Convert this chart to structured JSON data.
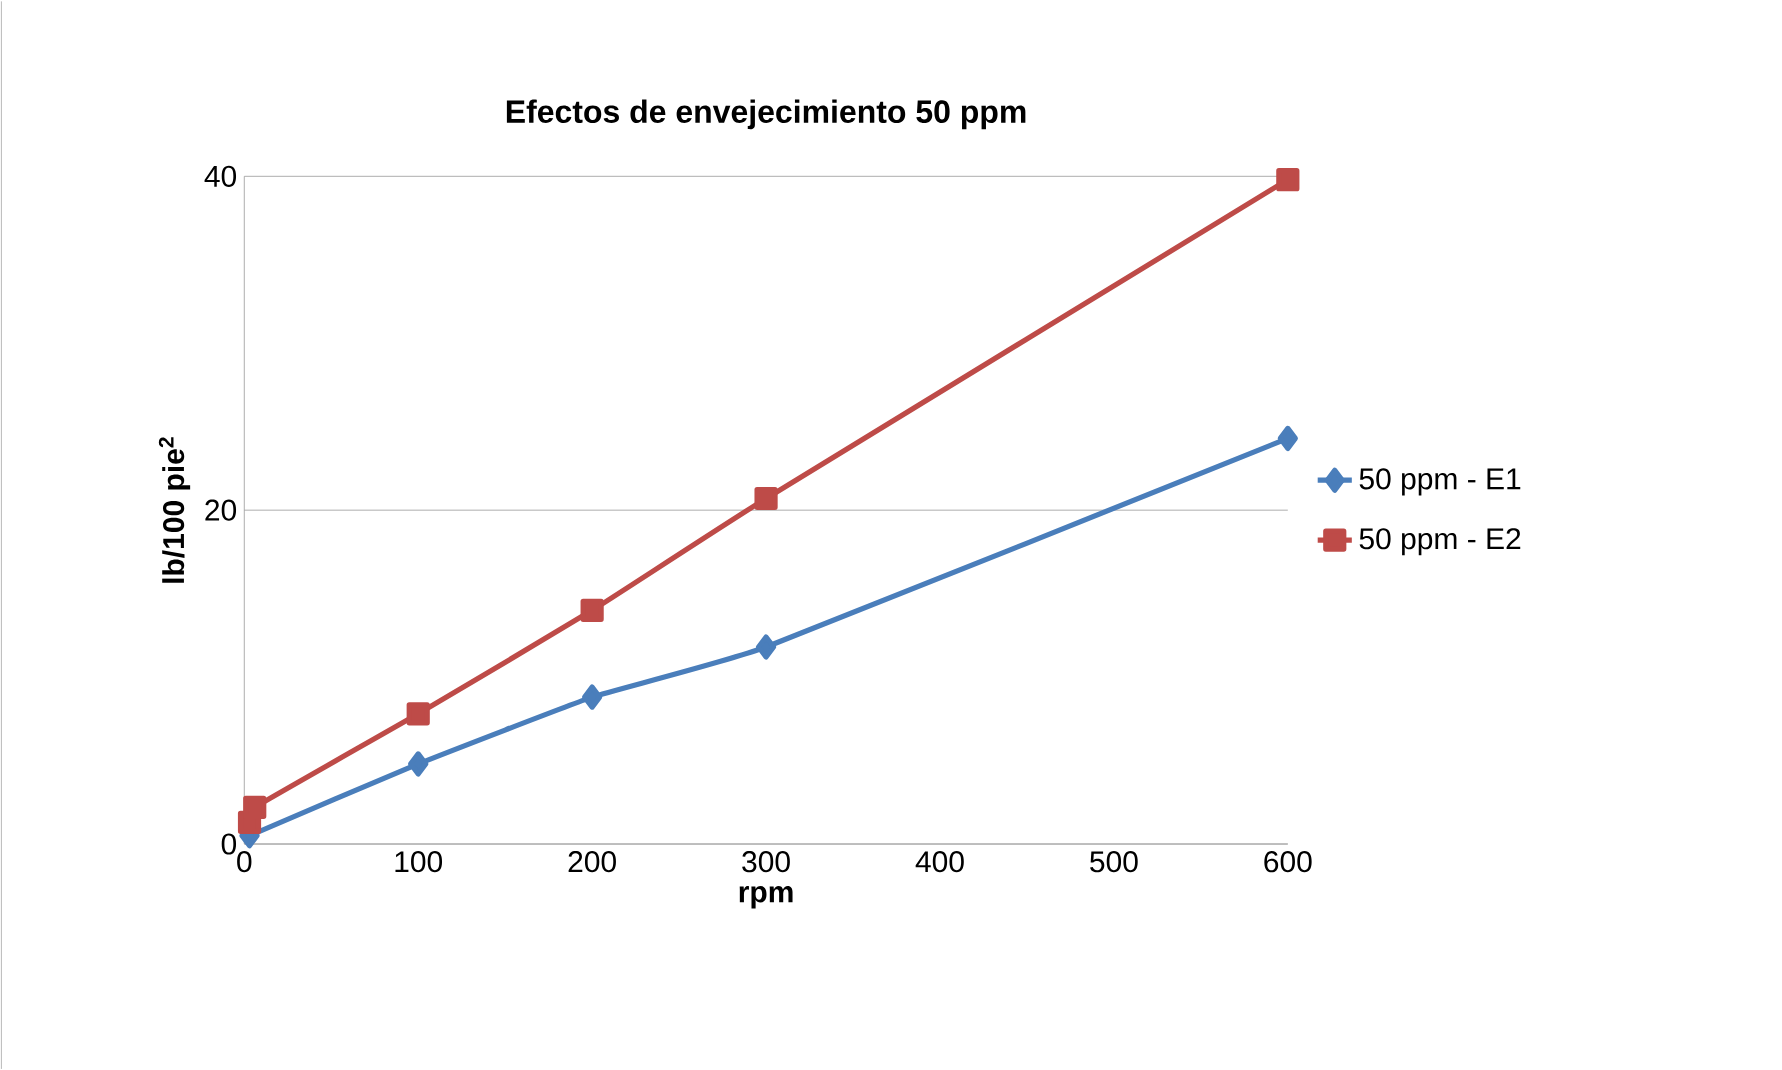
{
  "chart_data": {
    "type": "line",
    "title": "Efectos de envejecimiento 50 ppm",
    "xlabel": "rpm",
    "ylabel": "lb/100 pie$^{2}$",
    "xlim": [
      0,
      600
    ],
    "xticks": [
      0,
      100,
      200,
      300,
      400,
      500,
      600
    ],
    "ylim": [
      0,
      40
    ],
    "yticks": [
      0,
      20,
      40
    ],
    "grid": "y",
    "legend": "right",
    "series": [
      {
        "name": "50 ppm - E1",
        "color": "#4a7ebb",
        "marker": "diamond",
        "x": [
          3,
          6,
          100,
          200,
          300,
          600
        ],
        "values": [
          0.5,
          null,
          4.8,
          8.8,
          11.8,
          24.3
        ]
      },
      {
        "name": "50 ppm - E2",
        "color": "#be4b48",
        "marker": "square",
        "x": [
          3,
          6,
          100,
          200,
          300,
          600
        ],
        "values": [
          1.3,
          2.2,
          7.8,
          14,
          20.7,
          39.8
        ]
      }
    ]
  }
}
